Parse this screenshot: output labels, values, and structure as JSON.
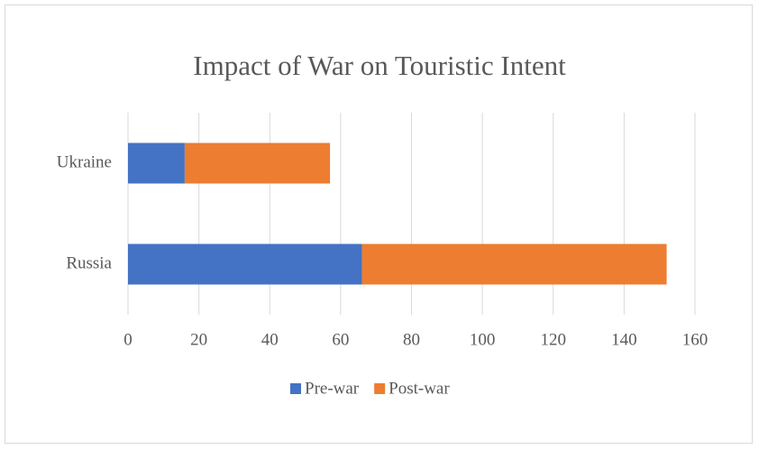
{
  "chart_data": {
    "type": "stacked-barh",
    "title": "Impact of War on Touristic Intent",
    "categories": [
      "Russia",
      "Ukraine"
    ],
    "series": [
      {
        "name": "Pre-war",
        "color": "#4472c4",
        "values": [
          66,
          16
        ]
      },
      {
        "name": "Post-war",
        "color": "#ed7d31",
        "values": [
          86,
          41
        ]
      }
    ],
    "xlim": [
      0,
      160
    ],
    "xticks": [
      0,
      20,
      40,
      60,
      80,
      100,
      120,
      140,
      160
    ],
    "grid": true,
    "legend": "bottom"
  }
}
